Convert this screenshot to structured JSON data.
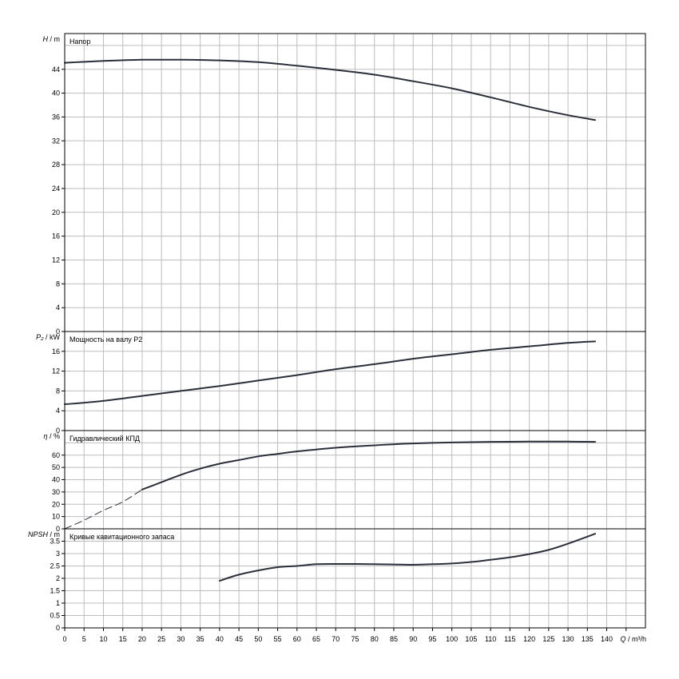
{
  "chart_data": {
    "type": "line",
    "x_axis": {
      "label_var": "Q",
      "label_unit": "m³/h",
      "range": [
        0,
        150
      ],
      "ticks": [
        0,
        5,
        10,
        15,
        20,
        25,
        30,
        35,
        40,
        45,
        50,
        55,
        60,
        65,
        70,
        75,
        80,
        85,
        90,
        95,
        100,
        105,
        110,
        115,
        120,
        125,
        130,
        135,
        140
      ]
    },
    "panels": [
      {
        "id": "head",
        "title": "Напор",
        "ylabel_var": "H",
        "ylabel_unit": "m",
        "ylim": [
          0,
          50
        ],
        "yticks": [
          0,
          4,
          8,
          12,
          16,
          20,
          24,
          28,
          32,
          36,
          40,
          44
        ],
        "ytick_labels": [
          "0",
          "4",
          "8",
          "12",
          "16",
          "20",
          "24",
          "28",
          "32",
          "36",
          "40",
          "44"
        ],
        "series": [
          {
            "style": "solid",
            "points": [
              [
                0,
                45.1
              ],
              [
                10,
                45.4
              ],
              [
                20,
                45.6
              ],
              [
                30,
                45.6
              ],
              [
                40,
                45.5
              ],
              [
                50,
                45.2
              ],
              [
                60,
                44.6
              ],
              [
                70,
                43.9
              ],
              [
                80,
                43.1
              ],
              [
                90,
                42.0
              ],
              [
                100,
                40.8
              ],
              [
                110,
                39.3
              ],
              [
                120,
                37.7
              ],
              [
                130,
                36.3
              ],
              [
                137,
                35.5
              ]
            ]
          }
        ]
      },
      {
        "id": "power",
        "title": "Мощность на валу P2",
        "ylabel_var": "P₂",
        "ylabel_unit": "kW",
        "ylim": [
          0,
          20
        ],
        "yticks": [
          0,
          4,
          8,
          12,
          16
        ],
        "ytick_labels": [
          "0",
          "4",
          "8",
          "12",
          "16"
        ],
        "series": [
          {
            "style": "solid",
            "points": [
              [
                0,
                5.3
              ],
              [
                10,
                6.0
              ],
              [
                20,
                7.0
              ],
              [
                30,
                8.0
              ],
              [
                40,
                9.0
              ],
              [
                50,
                10.1
              ],
              [
                60,
                11.2
              ],
              [
                70,
                12.4
              ],
              [
                80,
                13.4
              ],
              [
                90,
                14.5
              ],
              [
                100,
                15.4
              ],
              [
                110,
                16.3
              ],
              [
                120,
                17.0
              ],
              [
                130,
                17.7
              ],
              [
                137,
                18.0
              ]
            ]
          }
        ]
      },
      {
        "id": "efficiency",
        "title": "Гидравлический КПД",
        "ylabel_var": "η",
        "ylabel_unit": "%",
        "ylim": [
          0,
          80
        ],
        "yticks": [
          0,
          10,
          20,
          30,
          40,
          50,
          60
        ],
        "ytick_labels": [
          "0",
          "10",
          "20",
          "30",
          "40",
          "50",
          "60"
        ],
        "series": [
          {
            "style": "dashed",
            "points": [
              [
                0,
                0
              ],
              [
                5,
                7
              ],
              [
                10,
                15
              ],
              [
                15,
                22
              ],
              [
                20,
                32
              ]
            ]
          },
          {
            "style": "solid",
            "points": [
              [
                20,
                32
              ],
              [
                25,
                38
              ],
              [
                30,
                44
              ],
              [
                35,
                49
              ],
              [
                40,
                53
              ],
              [
                45,
                56
              ],
              [
                50,
                59
              ],
              [
                55,
                61
              ],
              [
                60,
                63
              ],
              [
                70,
                66
              ],
              [
                80,
                68
              ],
              [
                90,
                69.5
              ],
              [
                100,
                70.3
              ],
              [
                110,
                70.8
              ],
              [
                120,
                71.0
              ],
              [
                130,
                71.0
              ],
              [
                137,
                70.8
              ]
            ]
          }
        ]
      },
      {
        "id": "npsh",
        "title": "Кривые кавитационного запаса",
        "ylabel_var": "NPSH",
        "ylabel_unit": "m",
        "ylim": [
          0,
          4
        ],
        "yticks": [
          0,
          0.5,
          1,
          1.5,
          2,
          2.5,
          3,
          3.5
        ],
        "ytick_labels": [
          "0",
          "0.5",
          "1",
          "1.5",
          "2",
          "2.5",
          "3",
          "3.5"
        ],
        "series": [
          {
            "style": "solid",
            "points": [
              [
                40,
                1.9
              ],
              [
                45,
                2.15
              ],
              [
                50,
                2.32
              ],
              [
                55,
                2.45
              ],
              [
                60,
                2.5
              ],
              [
                65,
                2.57
              ],
              [
                70,
                2.58
              ],
              [
                75,
                2.58
              ],
              [
                80,
                2.57
              ],
              [
                85,
                2.56
              ],
              [
                90,
                2.55
              ],
              [
                95,
                2.57
              ],
              [
                100,
                2.6
              ],
              [
                105,
                2.66
              ],
              [
                110,
                2.75
              ],
              [
                115,
                2.85
              ],
              [
                120,
                2.98
              ],
              [
                125,
                3.15
              ],
              [
                130,
                3.4
              ],
              [
                137,
                3.8
              ]
            ]
          }
        ]
      }
    ]
  }
}
